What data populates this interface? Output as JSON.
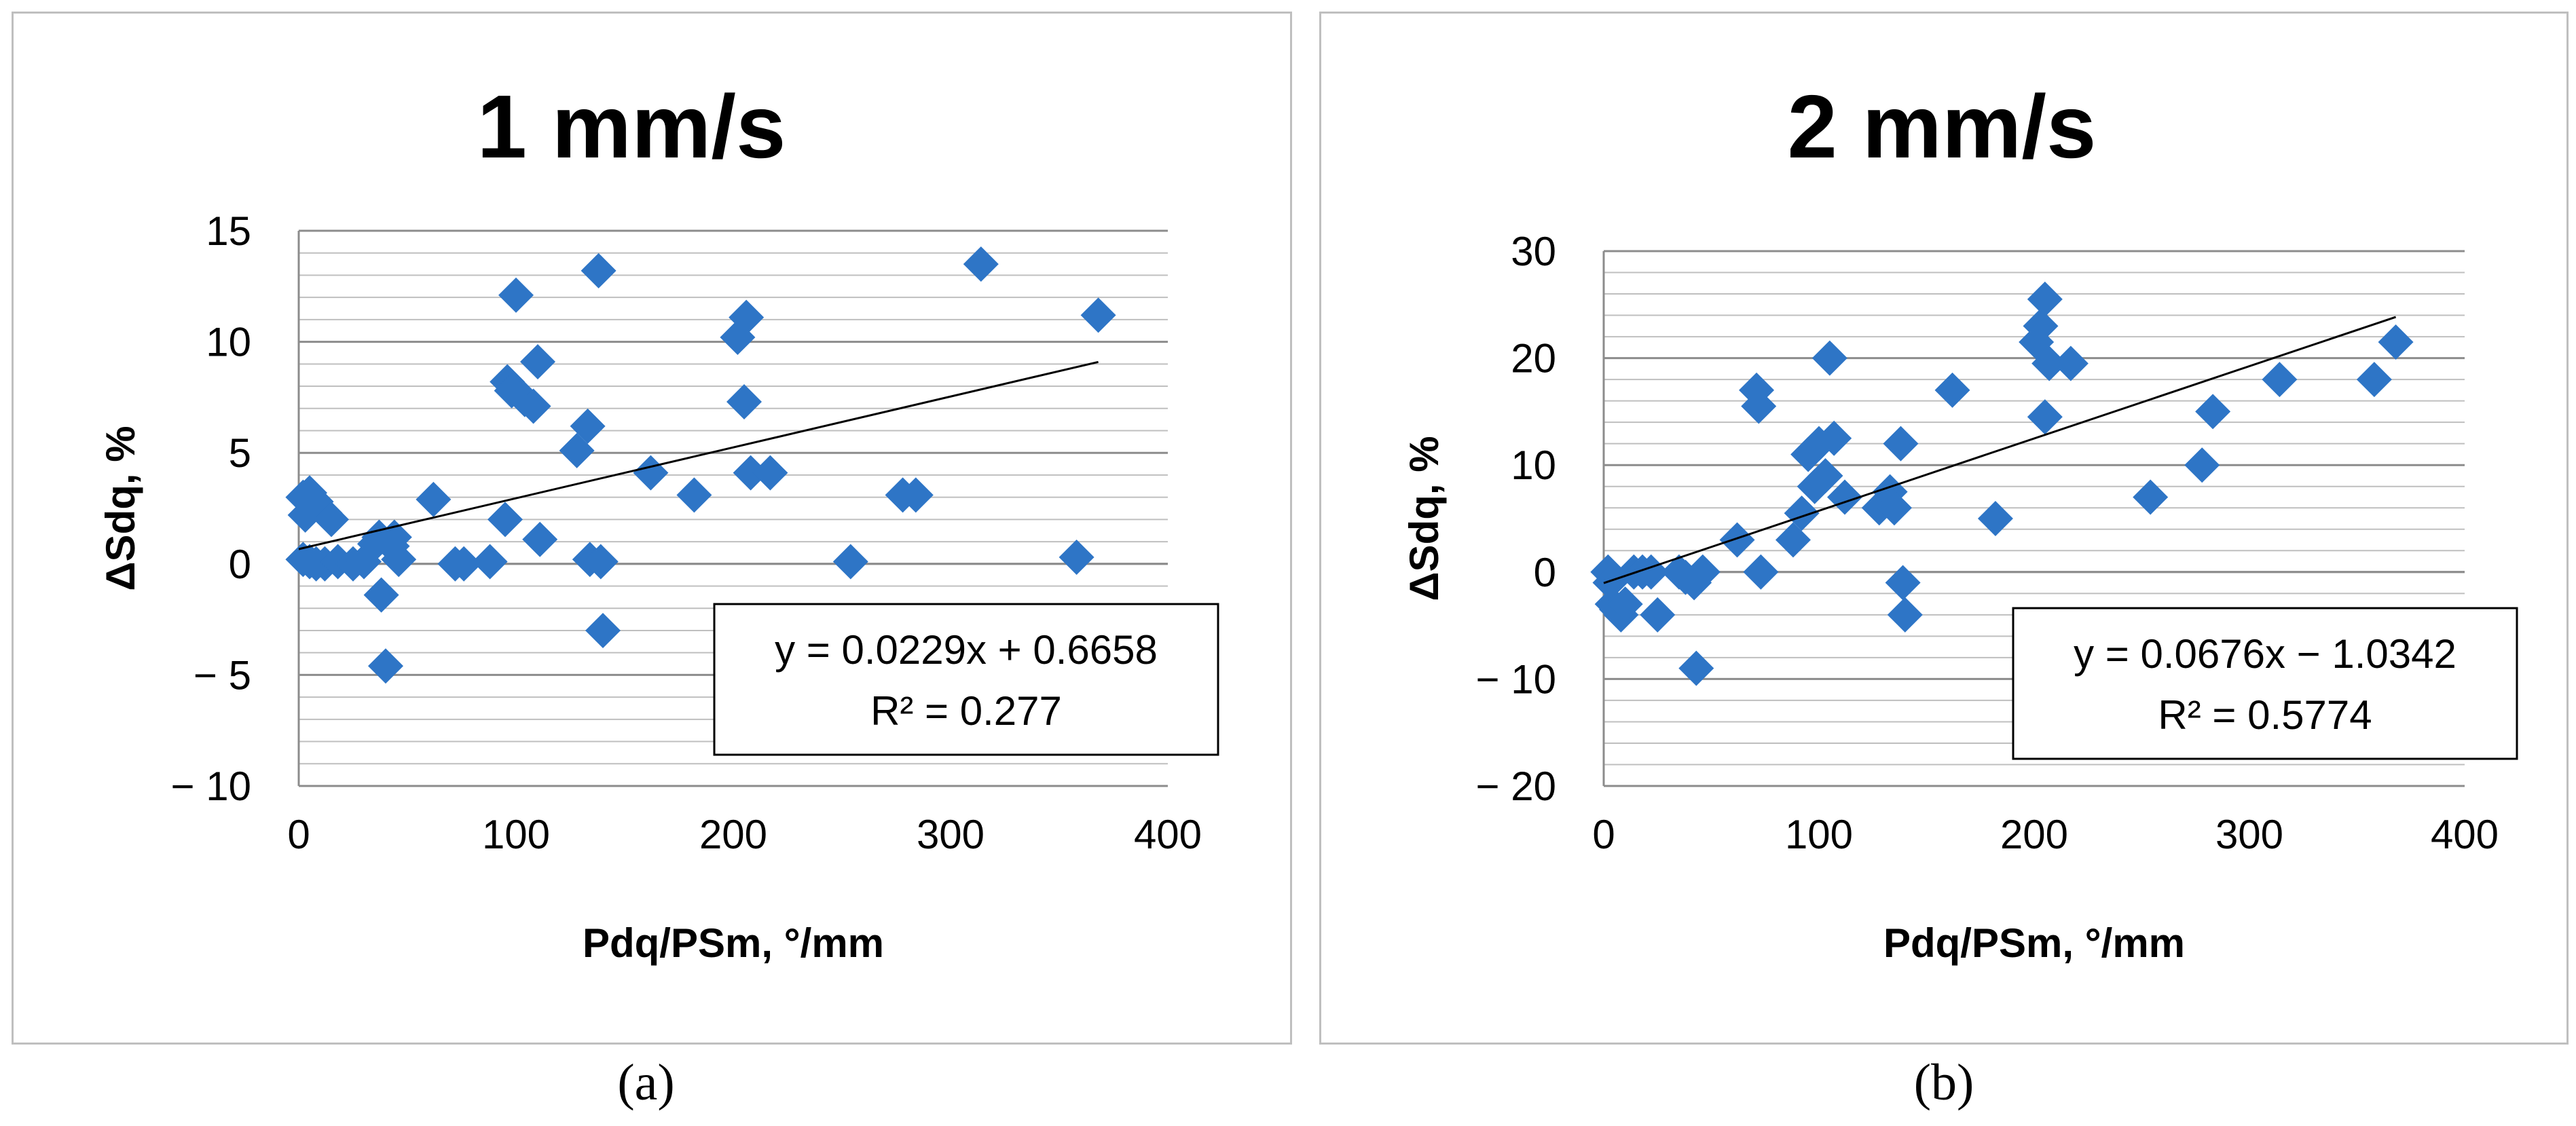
{
  "chart_data": [
    {
      "type": "scatter",
      "title": "1 mm/s",
      "xlabel": "Pdq/PSm, °/mm",
      "ylabel": "ΔSdq, %",
      "xlim": [
        0,
        400
      ],
      "ylim": [
        -10,
        15
      ],
      "x_ticks": [
        0,
        100,
        200,
        300,
        400
      ],
      "y_ticks": [
        15,
        10,
        5,
        0,
        -5,
        -10
      ],
      "x_tick_labels": [
        "0",
        "100",
        "200",
        "300",
        "400"
      ],
      "y_tick_labels": [
        "15",
        "10",
        "5",
        "0",
        "− 5",
        "− 10"
      ],
      "gridlines": "horizontal",
      "minor_y_step": 1,
      "marker_color": "#2E75C6",
      "trendline": {
        "slope": 0.0229,
        "intercept": 0.6658,
        "x_range": [
          0,
          368
        ]
      },
      "equation": "y = 0.0229x + 0.6658",
      "r_squared": "R² = 0.277",
      "caption": "(a)",
      "points": [
        [
          2,
          3.0
        ],
        [
          3,
          2.2
        ],
        [
          5,
          3.2
        ],
        [
          8,
          2.8
        ],
        [
          12,
          2.3
        ],
        [
          15,
          2.0
        ],
        [
          2,
          0.2
        ],
        [
          5,
          0.1
        ],
        [
          8,
          0.0
        ],
        [
          12,
          0.0
        ],
        [
          18,
          0.1
        ],
        [
          25,
          0.0
        ],
        [
          30,
          0.1
        ],
        [
          35,
          0.9
        ],
        [
          37,
          1.2
        ],
        [
          38,
          -1.4
        ],
        [
          40,
          -4.6
        ],
        [
          43,
          0.8
        ],
        [
          44,
          1.2
        ],
        [
          46,
          0.2
        ],
        [
          62,
          2.9
        ],
        [
          72,
          0.0
        ],
        [
          76,
          0.0
        ],
        [
          88,
          0.1
        ],
        [
          95,
          2.0
        ],
        [
          96,
          8.2
        ],
        [
          98,
          7.8
        ],
        [
          100,
          12.1
        ],
        [
          104,
          7.4
        ],
        [
          108,
          7.1
        ],
        [
          110,
          9.1
        ],
        [
          111,
          1.1
        ],
        [
          128,
          5.1
        ],
        [
          133,
          6.2
        ],
        [
          134,
          0.2
        ],
        [
          138,
          13.2
        ],
        [
          139,
          0.1
        ],
        [
          140,
          -3.0
        ],
        [
          162,
          4.1
        ],
        [
          182,
          3.1
        ],
        [
          202,
          10.2
        ],
        [
          205,
          7.3
        ],
        [
          206,
          11.1
        ],
        [
          208,
          4.1
        ],
        [
          217,
          4.1
        ],
        [
          254,
          0.1
        ],
        [
          278,
          3.1
        ],
        [
          284,
          3.1
        ],
        [
          314,
          13.5
        ],
        [
          358,
          0.3
        ],
        [
          368,
          11.2
        ]
      ]
    },
    {
      "type": "scatter",
      "title": "2 mm/s",
      "xlabel": "Pdq/PSm, °/mm",
      "ylabel": "ΔSdq, %",
      "xlim": [
        0,
        400
      ],
      "ylim": [
        -20,
        30
      ],
      "x_ticks": [
        0,
        100,
        200,
        300,
        400
      ],
      "y_ticks": [
        30,
        20,
        10,
        0,
        -10,
        -20
      ],
      "x_tick_labels": [
        "0",
        "100",
        "200",
        "300",
        "400"
      ],
      "y_tick_labels": [
        "30",
        "20",
        "10",
        "0",
        "− 10",
        "− 20"
      ],
      "gridlines": "horizontal",
      "minor_y_step": 2,
      "marker_color": "#2E75C6",
      "trendline": {
        "slope": 0.0676,
        "intercept": -1.0342,
        "x_range": [
          0,
          368
        ]
      },
      "equation": "y = 0.0676x − 1.0342",
      "r_squared": "R² = 0.5774",
      "caption": "(b)",
      "points": [
        [
          2,
          0.0
        ],
        [
          3,
          -1.0
        ],
        [
          4,
          -3.0
        ],
        [
          6,
          -3.5
        ],
        [
          8,
          -4.0
        ],
        [
          10,
          -3.0
        ],
        [
          14,
          0.0
        ],
        [
          18,
          0.0
        ],
        [
          22,
          0.0
        ],
        [
          25,
          -4.0
        ],
        [
          35,
          0.0
        ],
        [
          38,
          -0.5
        ],
        [
          42,
          -1.0
        ],
        [
          43,
          -9.0
        ],
        [
          46,
          0.0
        ],
        [
          62,
          3.0
        ],
        [
          71,
          17.0
        ],
        [
          72,
          15.5
        ],
        [
          73,
          0.0
        ],
        [
          88,
          3.0
        ],
        [
          92,
          5.5
        ],
        [
          95,
          11.0
        ],
        [
          98,
          8.0
        ],
        [
          100,
          12.0
        ],
        [
          103,
          9.0
        ],
        [
          105,
          20.0
        ],
        [
          107,
          12.5
        ],
        [
          112,
          7.0
        ],
        [
          128,
          6.0
        ],
        [
          133,
          7.5
        ],
        [
          135,
          6.0
        ],
        [
          138,
          12.0
        ],
        [
          139,
          -1.0
        ],
        [
          140,
          -4.0
        ],
        [
          162,
          17.0
        ],
        [
          182,
          5.0
        ],
        [
          201,
          21.5
        ],
        [
          203,
          23.0
        ],
        [
          205,
          25.5
        ],
        [
          205,
          14.5
        ],
        [
          207,
          19.5
        ],
        [
          217,
          19.5
        ],
        [
          254,
          7.0
        ],
        [
          278,
          10.0
        ],
        [
          283,
          15.0
        ],
        [
          314,
          18.0
        ],
        [
          358,
          18.0
        ],
        [
          368,
          21.5
        ]
      ]
    }
  ]
}
